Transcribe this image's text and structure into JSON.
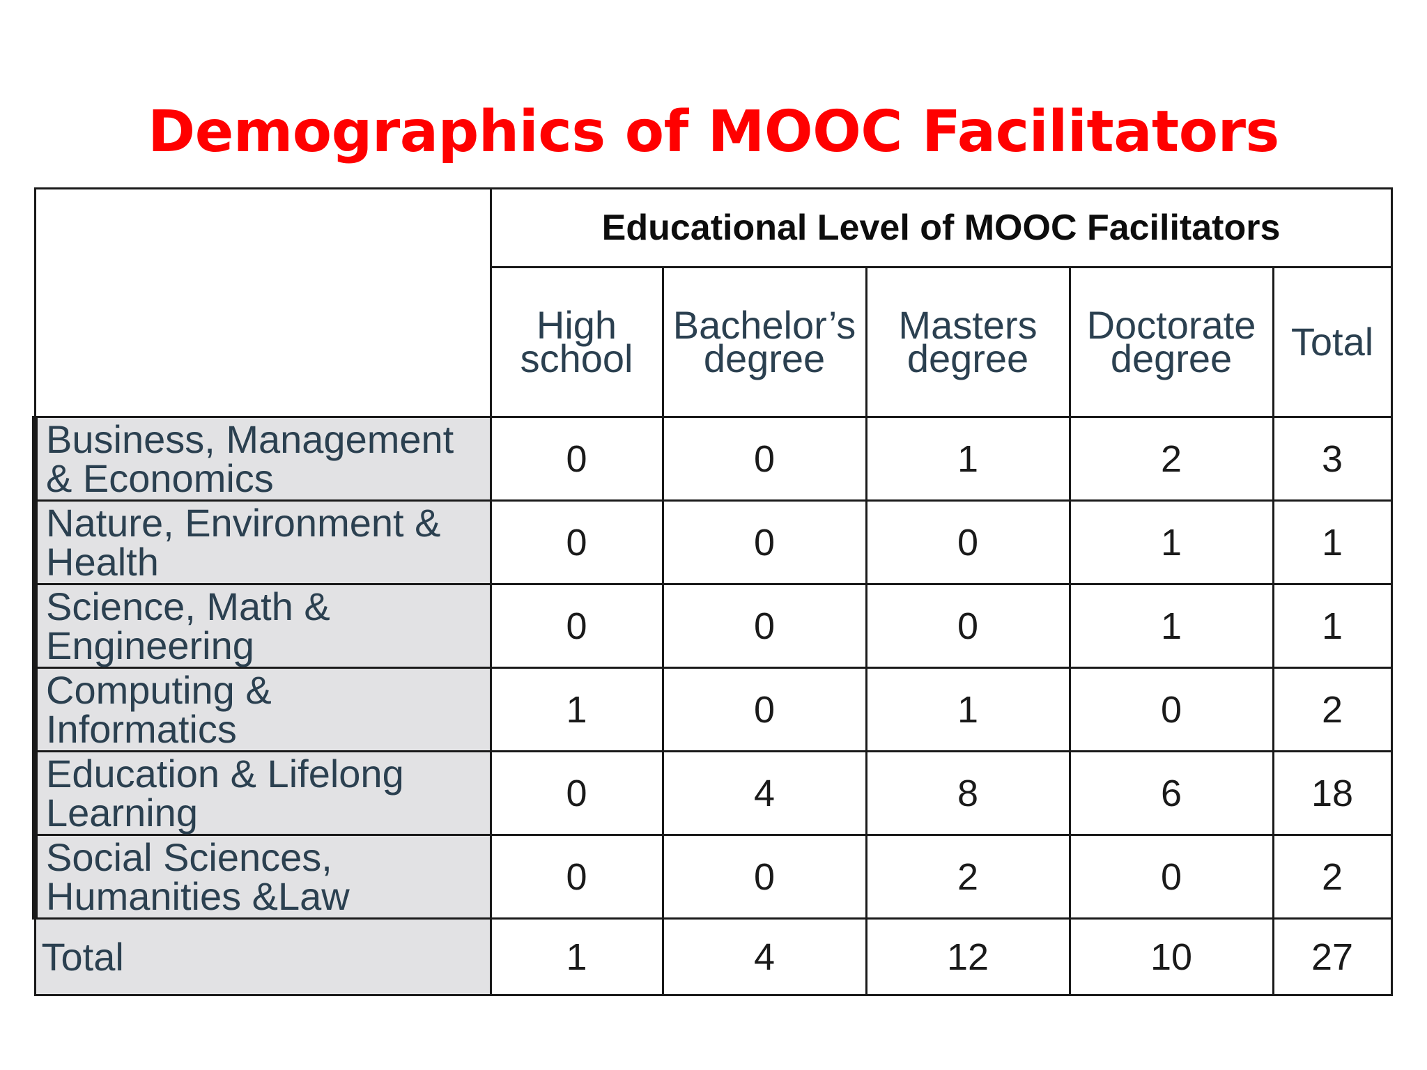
{
  "title": "Demographics of MOOC Facilitators",
  "chart_data": {
    "type": "table",
    "group_header": "Educational Level of MOOC Facilitators",
    "columns": [
      [
        "High",
        "school"
      ],
      [
        "Bachelor’s",
        "degree"
      ],
      [
        "Masters",
        "degree"
      ],
      [
        "Doctorate",
        "degree"
      ],
      [
        "Total"
      ]
    ],
    "rows": [
      {
        "label": [
          "Business, Management",
          "& Economics"
        ],
        "values": [
          "0",
          "0",
          "1",
          "2",
          "3"
        ]
      },
      {
        "label": [
          "Nature, Environment &",
          "Health"
        ],
        "values": [
          "0",
          "0",
          "0",
          "1",
          "1"
        ]
      },
      {
        "label": [
          "Science, Math &",
          "Engineering"
        ],
        "values": [
          "0",
          "0",
          "0",
          "1",
          "1"
        ]
      },
      {
        "label": [
          "Computing &",
          "Informatics"
        ],
        "values": [
          "1",
          "0",
          "1",
          "0",
          "2"
        ]
      },
      {
        "label": [
          "Education & Lifelong",
          "Learning"
        ],
        "values": [
          "0",
          "4",
          "8",
          "6",
          "18"
        ]
      },
      {
        "label": [
          "Social Sciences,",
          "Humanities &Law"
        ],
        "values": [
          "0",
          "0",
          "2",
          "0",
          "2"
        ]
      }
    ],
    "total_row": {
      "label": "Total",
      "values": [
        "1",
        "4",
        "12",
        "10",
        "27"
      ]
    }
  }
}
